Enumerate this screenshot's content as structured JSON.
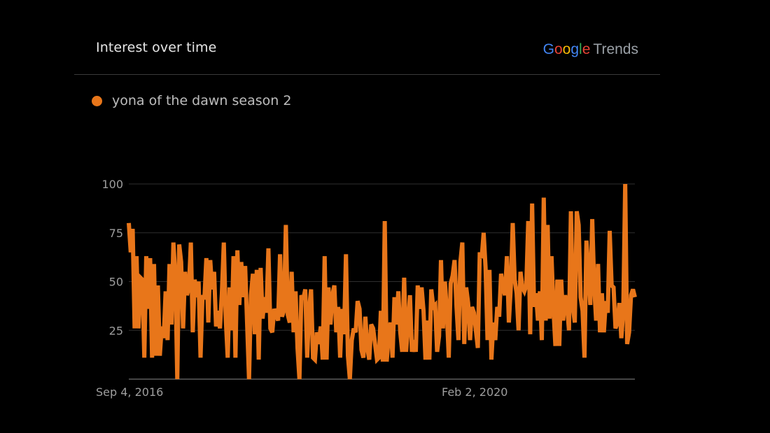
{
  "header": {
    "title": "Interest over time",
    "brand": {
      "google_letters": [
        "G",
        "o",
        "o",
        "g",
        "l",
        "e"
      ],
      "trends": "Trends"
    }
  },
  "colors": {
    "series": "#e8761a",
    "gridline": "#2e2e2e",
    "axis": "#8a8a8a",
    "google_letters": [
      "#4285F4",
      "#EA4335",
      "#FBBC05",
      "#4285F4",
      "#34A853",
      "#EA4335"
    ]
  },
  "legend": {
    "label": "yona of the dawn season 2"
  },
  "chart_data": {
    "type": "line",
    "title": "Interest over time",
    "xlabel": "",
    "ylabel": "",
    "ylim": [
      0,
      100
    ],
    "yticks": [
      25,
      50,
      75,
      100
    ],
    "xtick_labels": [
      "Sep 4, 2016",
      "Feb 2, 2020"
    ],
    "grid": true,
    "legend_position": "top-left",
    "series": [
      {
        "name": "yona of the dawn season 2",
        "values": [
          80,
          65,
          77,
          26,
          63,
          26,
          52,
          51,
          11,
          63,
          36,
          62,
          11,
          59,
          12,
          48,
          12,
          27,
          21,
          45,
          20,
          59,
          28,
          70,
          53,
          0,
          69,
          60,
          26,
          55,
          43,
          47,
          70,
          24,
          51,
          42,
          50,
          11,
          43,
          41,
          62,
          29,
          61,
          46,
          55,
          27,
          35,
          26,
          44,
          70,
          31,
          11,
          47,
          25,
          63,
          11,
          66,
          38,
          60,
          42,
          58,
          29,
          0,
          43,
          54,
          23,
          56,
          10,
          57,
          31,
          42,
          34,
          67,
          26,
          24,
          36,
          33,
          30,
          64,
          32,
          35,
          79,
          33,
          29,
          55,
          24,
          45,
          16,
          0,
          43,
          41,
          46,
          11,
          36,
          46,
          11,
          10,
          24,
          18,
          27,
          10,
          63,
          10,
          47,
          28,
          43,
          48,
          24,
          37,
          11,
          36,
          23,
          64,
          12,
          0,
          20,
          26,
          24,
          40,
          36,
          15,
          11,
          32,
          16,
          10,
          28,
          26,
          18,
          10,
          11,
          35,
          9,
          81,
          9,
          22,
          29,
          11,
          42,
          28,
          45,
          24,
          14,
          52,
          14,
          28,
          43,
          14,
          20,
          14,
          48,
          36,
          47,
          35,
          10,
          30,
          10,
          46,
          37,
          38,
          14,
          22,
          61,
          26,
          50,
          35,
          11,
          49,
          53,
          61,
          37,
          20,
          60,
          70,
          18,
          47,
          39,
          20,
          37,
          34,
          25,
          16,
          65,
          62,
          75,
          57,
          20,
          56,
          10,
          29,
          20,
          37,
          32,
          54,
          47,
          43,
          63,
          29,
          47,
          80,
          51,
          44,
          25,
          55,
          47,
          45,
          48,
          81,
          23,
          90,
          37,
          44,
          30,
          45,
          20,
          93,
          30,
          79,
          31,
          63,
          36,
          17,
          51,
          17,
          51,
          30,
          43,
          38,
          25,
          86,
          37,
          29,
          86,
          79,
          42,
          35,
          11,
          71,
          56,
          38,
          82,
          48,
          30,
          59,
          24,
          44,
          24,
          40,
          34,
          76,
          48,
          47,
          26,
          29,
          39,
          21,
          35,
          100,
          18,
          24,
          43,
          46,
          42
        ],
        "note": ""
      }
    ]
  }
}
